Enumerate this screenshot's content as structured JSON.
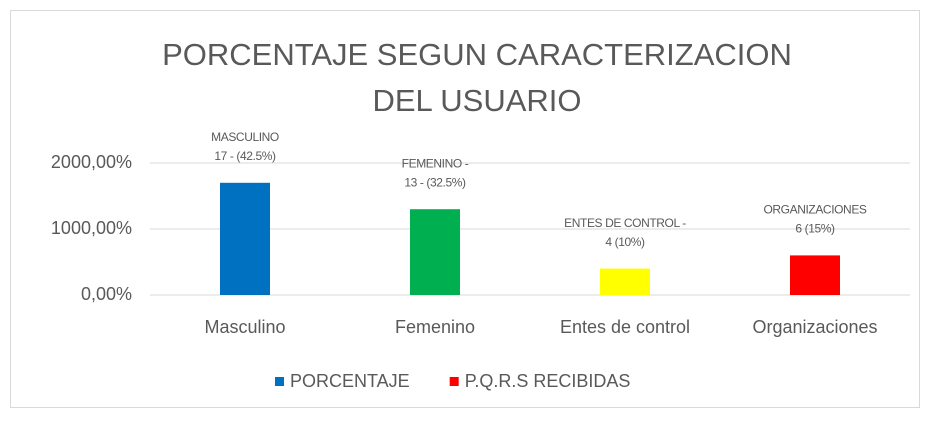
{
  "chart_data": {
    "type": "bar",
    "title": [
      "PORCENTAJE SEGUN CARACTERIZACION",
      "DEL USUARIO"
    ],
    "categories": [
      "Masculino",
      "Femenino",
      "Entes de control",
      "Organizaciones"
    ],
    "values": [
      1700,
      1300,
      400,
      600
    ],
    "colors": [
      "#0070c0",
      "#00b050",
      "#ffff00",
      "#ff0000"
    ],
    "value_labels": [
      [
        "MASCULINO",
        "17 - (42.5%)"
      ],
      [
        "FEMENINO -",
        "13 - (32.5%)"
      ],
      [
        "ENTES DE CONTROL -",
        "4 (10%)"
      ],
      [
        "ORGANIZACIONES",
        "6 (15%)"
      ]
    ],
    "ylim": [
      0,
      2000
    ],
    "yticks": [
      {
        "value": 0,
        "label": "0,00%"
      },
      {
        "value": 1000,
        "label": "1000,00%"
      },
      {
        "value": 2000,
        "label": "2000,00%"
      }
    ],
    "grid": true,
    "legend_position": "bottom",
    "legend": [
      {
        "name": "PORCENTAJE",
        "color": "#0070c0"
      },
      {
        "name": "P.Q.R.S RECIBIDAS",
        "color": "#ff0000"
      }
    ]
  }
}
